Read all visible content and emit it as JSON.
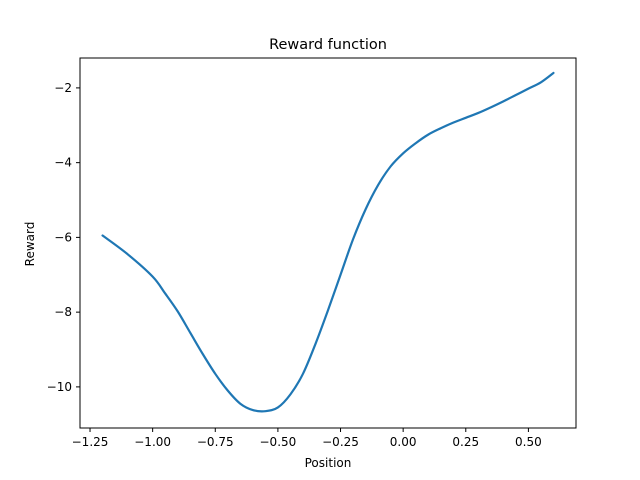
{
  "chart_data": {
    "type": "line",
    "title": "Reward function",
    "xlabel": "Position",
    "ylabel": "Reward",
    "xlim": [
      -1.29,
      0.69
    ],
    "ylim": [
      -11.1,
      -1.2
    ],
    "grid": false,
    "x_ticks": [
      -1.25,
      -1.0,
      -0.75,
      -0.5,
      -0.25,
      0.0,
      0.25,
      0.5
    ],
    "x_tick_labels": [
      "−1.25",
      "−1.00",
      "−0.75",
      "−0.50",
      "−0.25",
      "0.00",
      "0.25",
      "0.50"
    ],
    "y_ticks": [
      -10,
      -8,
      -6,
      -4,
      -2
    ],
    "y_tick_labels": [
      "−10",
      "−8",
      "−6",
      "−4",
      "−2"
    ],
    "series": [
      {
        "color": "#1f77b4",
        "x": [
          -1.2,
          -1.1,
          -1.0,
          -0.95,
          -0.9,
          -0.85,
          -0.8,
          -0.75,
          -0.7,
          -0.65,
          -0.6,
          -0.55,
          -0.5,
          -0.45,
          -0.4,
          -0.35,
          -0.3,
          -0.25,
          -0.2,
          -0.15,
          -0.1,
          -0.05,
          0.0,
          0.05,
          0.1,
          0.15,
          0.2,
          0.25,
          0.3,
          0.35,
          0.4,
          0.45,
          0.5,
          0.55,
          0.6
        ],
        "y": [
          -5.95,
          -6.45,
          -7.05,
          -7.5,
          -7.98,
          -8.55,
          -9.12,
          -9.65,
          -10.1,
          -10.45,
          -10.62,
          -10.65,
          -10.55,
          -10.2,
          -9.65,
          -8.85,
          -7.95,
          -7.0,
          -6.05,
          -5.25,
          -4.6,
          -4.1,
          -3.75,
          -3.48,
          -3.25,
          -3.08,
          -2.93,
          -2.8,
          -2.67,
          -2.52,
          -2.36,
          -2.19,
          -2.02,
          -1.85,
          -1.6
        ]
      }
    ]
  }
}
